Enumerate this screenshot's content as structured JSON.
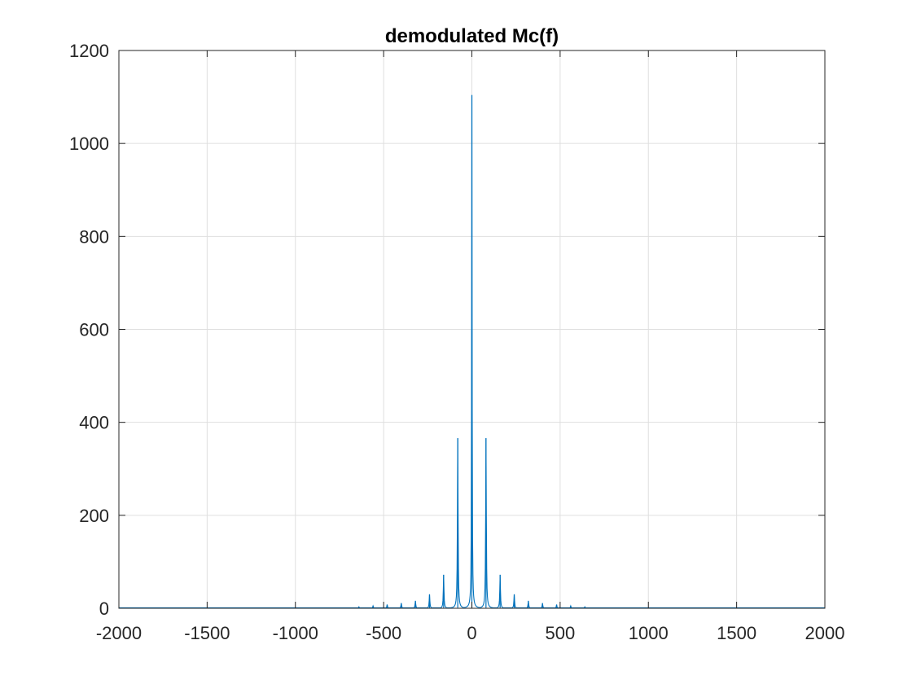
{
  "chart_data": {
    "type": "line",
    "title": "demodulated Mc(f)",
    "xlabel": "",
    "ylabel": "",
    "xlim": [
      -2000,
      2000
    ],
    "ylim": [
      0,
      1200
    ],
    "xticks": [
      -2000,
      -1500,
      -1000,
      -500,
      0,
      500,
      1000,
      1500,
      2000
    ],
    "yticks": [
      0,
      200,
      400,
      600,
      800,
      1000,
      1200
    ],
    "grid": true,
    "line_color": "#0072BD",
    "series": [
      {
        "peaks": [
          {
            "f": -640,
            "a": 3
          },
          {
            "f": -560,
            "a": 5
          },
          {
            "f": -480,
            "a": 8
          },
          {
            "f": -400,
            "a": 11
          },
          {
            "f": -320,
            "a": 16
          },
          {
            "f": -240,
            "a": 30
          },
          {
            "f": -160,
            "a": 72
          },
          {
            "f": -80,
            "a": 366
          },
          {
            "f": 0,
            "a": 1104
          },
          {
            "f": 80,
            "a": 366
          },
          {
            "f": 160,
            "a": 72
          },
          {
            "f": 240,
            "a": 30
          },
          {
            "f": 320,
            "a": 16
          },
          {
            "f": 400,
            "a": 11
          },
          {
            "f": 480,
            "a": 8
          },
          {
            "f": 560,
            "a": 5
          },
          {
            "f": 640,
            "a": 3
          }
        ],
        "floor": 1
      }
    ]
  }
}
